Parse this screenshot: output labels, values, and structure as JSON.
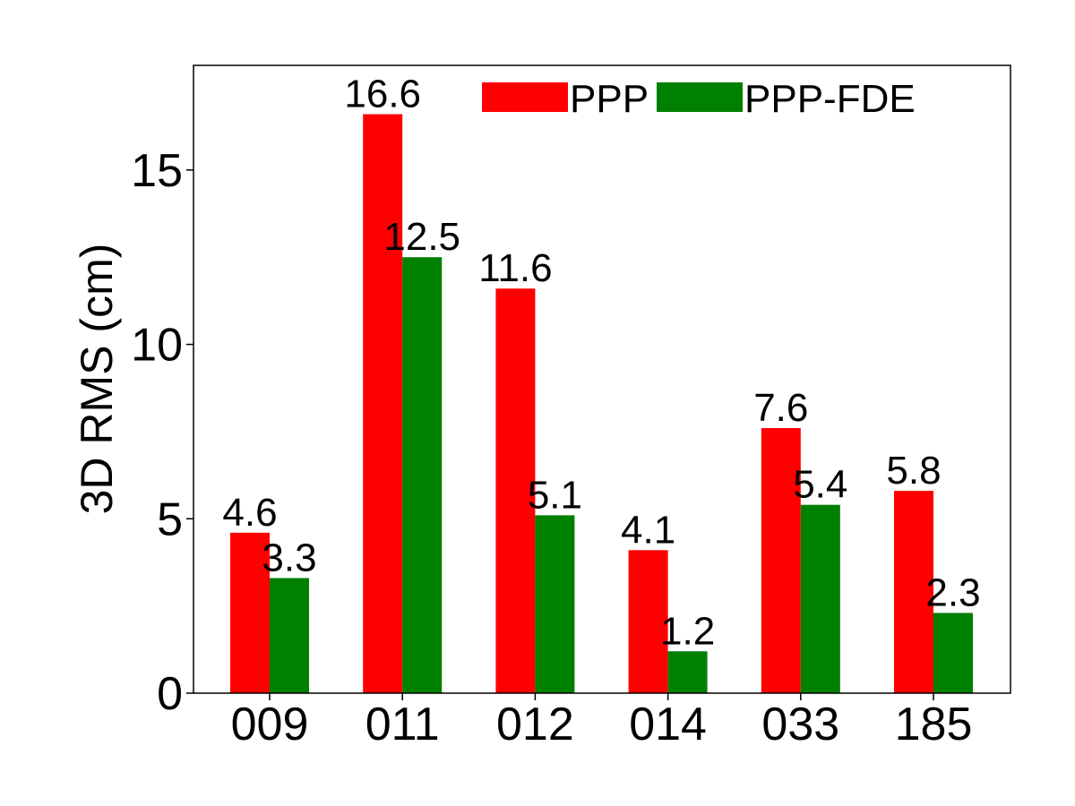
{
  "chart_data": {
    "type": "bar",
    "title": "",
    "xlabel": "",
    "ylabel": "3D RMS (cm)",
    "categories": [
      "009",
      "011",
      "012",
      "014",
      "033",
      "185"
    ],
    "series": [
      {
        "name": "PPP",
        "color": "#ff0000",
        "values": [
          4.6,
          16.6,
          11.6,
          4.1,
          7.6,
          5.8
        ],
        "labels": [
          "4.6",
          "16.6",
          "11.6",
          "4.1",
          "7.6",
          "5.8"
        ]
      },
      {
        "name": "PPP-FDE",
        "color": "#008000",
        "values": [
          3.3,
          12.5,
          5.1,
          1.2,
          5.4,
          2.3
        ],
        "labels": [
          "3.3",
          "12.5",
          "5.1",
          "1.2",
          "5.4",
          "2.3"
        ]
      }
    ],
    "ylim": [
      0,
      18
    ],
    "yticks": [
      0,
      5,
      10,
      15
    ],
    "ytick_labels": [
      "0",
      "5",
      "10",
      "15"
    ],
    "grid": false,
    "legend_position": "top-right"
  }
}
